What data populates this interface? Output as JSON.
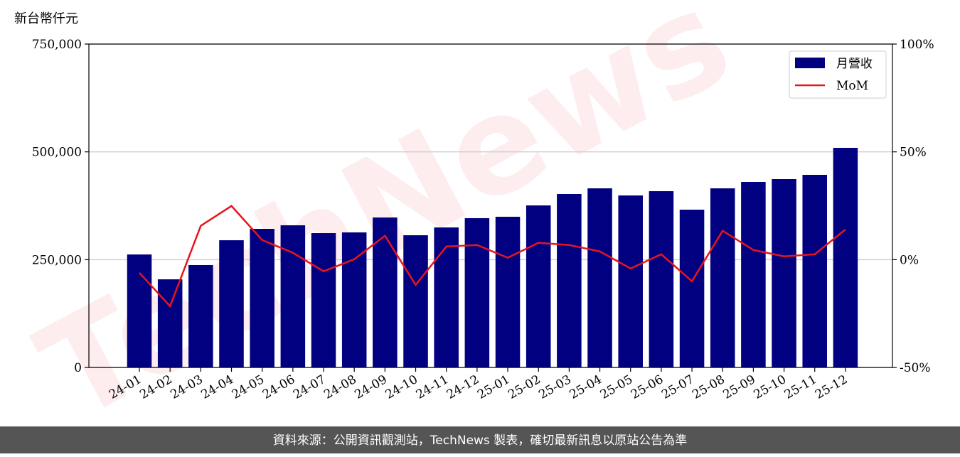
{
  "chart_data": {
    "type": "bar",
    "ylabel": "新台幣仟元",
    "watermark": "TechNews",
    "categories": [
      "24-01",
      "24-02",
      "24-03",
      "24-04",
      "24-05",
      "24-06",
      "24-07",
      "24-08",
      "24-09",
      "24-10",
      "24-11",
      "24-12",
      "25-01",
      "25-02",
      "25-03",
      "25-04",
      "25-05",
      "25-06",
      "25-07",
      "25-08",
      "25-09",
      "25-10",
      "25-11",
      "25-12"
    ],
    "series": [
      {
        "name": "月營收",
        "color": "#000080",
        "values": [
          262000,
          204400,
          237400,
          295000,
          321400,
          329700,
          311500,
          313200,
          347800,
          306600,
          324700,
          346200,
          349500,
          375800,
          402200,
          415400,
          398900,
          408800,
          365900,
          415400,
          430200,
          436800,
          446700,
          509300
        ]
      },
      {
        "name": "MoM",
        "color": "#e8141c",
        "axis": "y2",
        "type": "line",
        "values": [
          -6.1,
          -21.6,
          15.7,
          24.9,
          9.1,
          3.2,
          -5.4,
          0.2,
          11.1,
          -11.7,
          6.1,
          6.8,
          0.9,
          7.8,
          6.8,
          3.8,
          -4.1,
          2.5,
          -10.0,
          13.4,
          4.5,
          1.5,
          2.5,
          14.0
        ]
      }
    ],
    "ylim": [
      0,
      750000
    ],
    "yticks": [
      0,
      {
        "value": 250000,
        "label": "250,000"
      },
      {
        "value": 500000,
        "label": "500,000"
      },
      {
        "value": 750000,
        "label": "750,000"
      }
    ],
    "y2lim": [
      -50,
      100
    ],
    "y2ticks": [
      {
        "value": -50,
        "label": "-50%"
      },
      {
        "value": 0,
        "label": "0%"
      },
      {
        "value": 50,
        "label": "50%"
      },
      {
        "value": 100,
        "label": "100%"
      }
    ],
    "grid": true,
    "legend": "upper right"
  },
  "footer": "資料來源：公開資訊觀測站，TechNews 製表，確切最新訊息以原站公告為準"
}
